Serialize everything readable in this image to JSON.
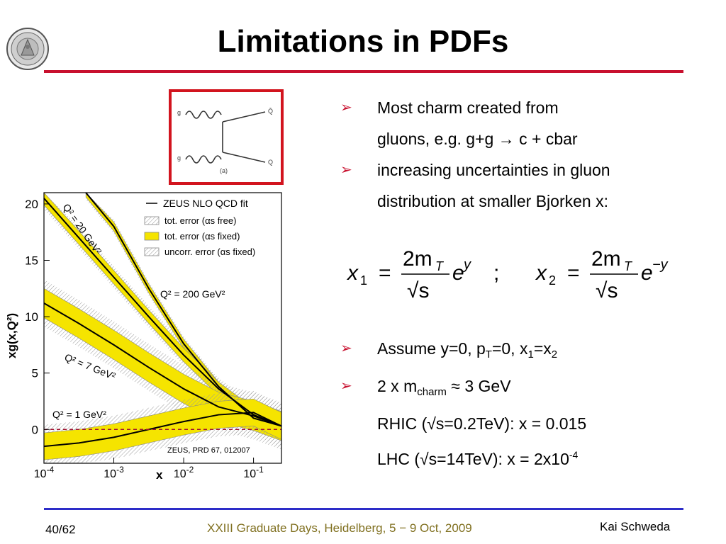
{
  "slide": {
    "title": "Limitations in PDFs",
    "page_number": "40/62",
    "footer": "XXIII Graduate Days, Heidelberg, 5  − 9 Oct, 2009",
    "author": "Kai Schweda"
  },
  "bullets": [
    {
      "line1": "Most charm created from",
      "line2": "gluons, e.g. g+g → c + cbar"
    },
    {
      "line1": "increasing uncertainties in gluon",
      "line2": "distribution at smaller Bjorken x:"
    }
  ],
  "bullets2": [
    {
      "pre": "Assume y=0, p",
      "sub1": "T",
      "mid1": "=0, x",
      "sub2": "1",
      "mid2": "=x",
      "sub3": "2"
    },
    {
      "pre": "2 x m",
      "sub1": "charm",
      "post": " ≈ 3 GeV",
      "line2": "RHIC (√s=0.2TeV): x = 0.015",
      "line3a": "LHC (√s=14TeV): x = 2x10",
      "line3sup": "-4"
    }
  ],
  "formula": {
    "x1_lhs": "x",
    "x1_sub": "1",
    "eq": "=",
    "num": "2m",
    "num_sub": "T",
    "den": "√s",
    "exp1": "y",
    "sep": ";",
    "x2_lhs": "x",
    "x2_sub": "2",
    "exp2": "−y",
    "e": "e"
  },
  "feynman": {
    "g_top": "g",
    "g_bottom": "g",
    "q_top": "Q̄",
    "q_bottom": "Q",
    "caption": "(a)"
  },
  "chart_data": {
    "type": "line",
    "ylabel": "xg(x,Q²)",
    "xlabel": "x",
    "yticks": [
      "0",
      "5",
      "10",
      "15",
      "20"
    ],
    "xticks": [
      "10-4",
      "10-3",
      "10-2",
      "10-1"
    ],
    "ylim": [
      -3,
      21
    ],
    "xlim_log10": [
      -4,
      -0.6
    ],
    "legend": {
      "fit": "ZEUS NLO QCD fit",
      "err_free": "tot. error (αs free)",
      "err_fixed": "tot. error (αs fixed)",
      "uncorr": "uncorr. error (αs fixed)"
    },
    "ref": "ZEUS, PRD 67, 012007",
    "labels": {
      "q20": "Q² = 20 GeV²",
      "q200": "Q² = 200 GeV²",
      "q7": "Q² = 7 GeV²",
      "q1": "Q² = 1 GeV²"
    },
    "series": [
      {
        "name": "Q² = 200 GeV²",
        "x_log10": [
          -3.4,
          -3.0,
          -2.5,
          -2.0,
          -1.5,
          -1.0,
          -0.6
        ],
        "y": [
          21,
          18.0,
          12.5,
          7.6,
          3.8,
          1.0,
          0.3
        ],
        "band": 0.4
      },
      {
        "name": "Q² = 20 GeV²",
        "x_log10": [
          -4.0,
          -3.5,
          -3.0,
          -2.5,
          -2.0,
          -1.5,
          -1.0,
          -0.6
        ],
        "y": [
          20.5,
          17.0,
          13.5,
          10.0,
          6.6,
          3.6,
          1.3,
          0.3
        ],
        "band": 0.6
      },
      {
        "name": "Q² = 7 GeV²",
        "x_log10": [
          -4.0,
          -3.5,
          -3.0,
          -2.5,
          -2.0,
          -1.5,
          -1.0,
          -0.6
        ],
        "y": [
          11.2,
          9.4,
          7.5,
          5.5,
          3.6,
          2.0,
          1.2,
          0.3
        ],
        "band": 1.3
      },
      {
        "name": "Q² = 1 GeV²",
        "x_log10": [
          -4.0,
          -3.5,
          -3.0,
          -2.5,
          -2.0,
          -1.5,
          -1.0,
          -0.6
        ],
        "y": [
          -1.5,
          -1.2,
          -0.7,
          0.0,
          0.7,
          1.3,
          1.5,
          0.3
        ],
        "band": 1.2
      }
    ],
    "colors": {
      "band": "#f5e400",
      "line": "#000000",
      "zero_line": "#a0102e"
    }
  }
}
